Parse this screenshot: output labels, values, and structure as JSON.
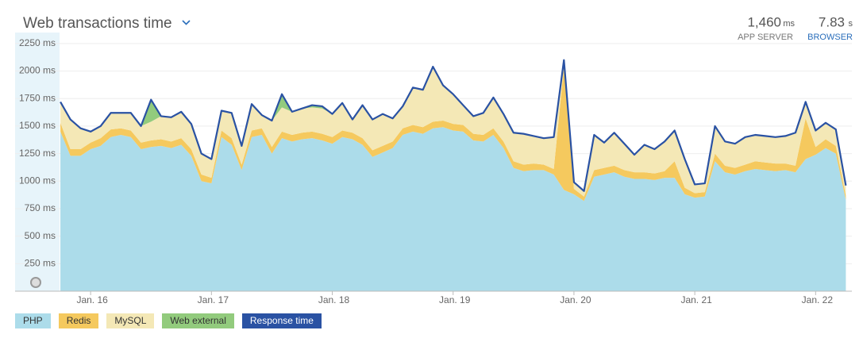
{
  "header": {
    "title": "Web transactions time",
    "stats": [
      {
        "value": "1,460",
        "unit": "ms",
        "label": "APP SERVER"
      },
      {
        "value": "7.83",
        "unit": "s",
        "label": "BROWSER"
      }
    ]
  },
  "chart_data": {
    "type": "area",
    "stacked": true,
    "grid": true,
    "x": [
      15.75,
      15.833,
      15.917,
      16,
      16.083,
      16.167,
      16.25,
      16.333,
      16.417,
      16.5,
      16.583,
      16.667,
      16.75,
      16.833,
      16.917,
      17,
      17.083,
      17.167,
      17.25,
      17.333,
      17.417,
      17.5,
      17.583,
      17.667,
      17.75,
      17.833,
      17.917,
      18,
      18.083,
      18.167,
      18.25,
      18.333,
      18.417,
      18.5,
      18.583,
      18.667,
      18.75,
      18.833,
      18.917,
      19,
      19.083,
      19.167,
      19.25,
      19.333,
      19.417,
      19.5,
      19.583,
      19.667,
      19.75,
      19.833,
      19.917,
      20,
      20.083,
      20.167,
      20.25,
      20.333,
      20.417,
      20.5,
      20.583,
      20.667,
      20.75,
      20.833,
      20.917,
      21,
      21.083,
      21.167,
      21.25,
      21.333,
      21.417,
      21.5,
      21.583,
      21.667,
      21.75,
      21.833,
      21.917,
      22,
      22.083,
      22.167,
      22.25
    ],
    "series": [
      {
        "name": "PHP",
        "color": "#acdcea",
        "values": [
          1450,
          1230,
          1230,
          1290,
          1320,
          1400,
          1420,
          1400,
          1290,
          1310,
          1320,
          1300,
          1330,
          1230,
          1000,
          980,
          1400,
          1330,
          1100,
          1400,
          1420,
          1250,
          1390,
          1360,
          1380,
          1390,
          1370,
          1340,
          1400,
          1380,
          1330,
          1220,
          1260,
          1300,
          1420,
          1450,
          1430,
          1480,
          1490,
          1460,
          1450,
          1370,
          1360,
          1420,
          1300,
          1120,
          1090,
          1100,
          1100,
          1060,
          920,
          880,
          820,
          1040,
          1060,
          1080,
          1040,
          1020,
          1020,
          1010,
          1030,
          1030,
          880,
          850,
          860,
          1180,
          1080,
          1060,
          1090,
          1110,
          1100,
          1090,
          1100,
          1080,
          1200,
          1240,
          1300,
          1250,
          830
        ]
      },
      {
        "name": "Redis",
        "color": "#f5c95e",
        "values": [
          80,
          60,
          60,
          60,
          70,
          70,
          60,
          60,
          60,
          60,
          60,
          60,
          60,
          60,
          60,
          50,
          60,
          60,
          50,
          60,
          60,
          60,
          60,
          60,
          60,
          60,
          60,
          60,
          60,
          60,
          60,
          60,
          60,
          60,
          60,
          60,
          60,
          60,
          60,
          60,
          60,
          60,
          60,
          60,
          60,
          60,
          60,
          60,
          50,
          50,
          1120,
          50,
          40,
          60,
          60,
          60,
          60,
          60,
          60,
          60,
          60,
          150,
          60,
          40,
          40,
          70,
          60,
          60,
          60,
          70,
          70,
          70,
          60,
          60,
          370,
          70,
          80,
          70,
          40
        ]
      },
      {
        "name": "MySQL",
        "color": "#f4e8b6",
        "values": [
          190,
          270,
          190,
          100,
          110,
          150,
          140,
          160,
          150,
          170,
          210,
          220,
          240,
          230,
          190,
          170,
          180,
          230,
          170,
          240,
          120,
          240,
          220,
          210,
          220,
          220,
          230,
          210,
          250,
          120,
          300,
          280,
          290,
          210,
          200,
          340,
          340,
          500,
          320,
          270,
          180,
          160,
          200,
          280,
          250,
          260,
          280,
          250,
          240,
          290,
          60,
          60,
          50,
          320,
          230,
          300,
          240,
          160,
          250,
          220,
          270,
          280,
          260,
          80,
          80,
          250,
          220,
          220,
          250,
          240,
          240,
          240,
          250,
          300,
          150,
          150,
          150,
          150,
          90
        ]
      },
      {
        "name": "Web external",
        "color": "#92cb7d",
        "values": [
          0,
          0,
          0,
          0,
          0,
          0,
          0,
          0,
          0,
          200,
          0,
          0,
          0,
          0,
          0,
          0,
          0,
          0,
          0,
          0,
          0,
          0,
          120,
          0,
          0,
          20,
          20,
          0,
          0,
          0,
          0,
          0,
          0,
          0,
          0,
          0,
          0,
          0,
          0,
          0,
          0,
          0,
          0,
          0,
          0,
          0,
          0,
          0,
          0,
          0,
          0,
          0,
          0,
          0,
          0,
          0,
          0,
          0,
          0,
          0,
          0,
          0,
          0,
          0,
          0,
          0,
          0,
          0,
          0,
          0,
          0,
          0,
          0,
          0,
          0,
          0,
          0,
          0,
          0
        ]
      },
      {
        "name": "Response time",
        "type": "line",
        "color": "#2a52a3",
        "values": [
          1720,
          1560,
          1480,
          1450,
          1500,
          1620,
          1620,
          1620,
          1500,
          1740,
          1590,
          1580,
          1630,
          1520,
          1250,
          1200,
          1640,
          1620,
          1320,
          1700,
          1600,
          1550,
          1790,
          1630,
          1660,
          1690,
          1680,
          1610,
          1710,
          1560,
          1690,
          1560,
          1610,
          1570,
          1680,
          1850,
          1830,
          2040,
          1870,
          1790,
          1690,
          1590,
          1620,
          1760,
          1610,
          1440,
          1430,
          1410,
          1390,
          1400,
          2100,
          990,
          910,
          1420,
          1350,
          1440,
          1340,
          1240,
          1330,
          1290,
          1360,
          1460,
          1200,
          970,
          980,
          1500,
          1360,
          1340,
          1400,
          1420,
          1410,
          1400,
          1410,
          1440,
          1720,
          1460,
          1530,
          1470,
          960
        ]
      }
    ],
    "xlim": [
      15.375,
      22.3
    ],
    "xticks": [
      {
        "value": 16,
        "label": "Jan. 16"
      },
      {
        "value": 17,
        "label": "Jan. 17"
      },
      {
        "value": 18,
        "label": "Jan. 18"
      },
      {
        "value": 19,
        "label": "Jan. 19"
      },
      {
        "value": 20,
        "label": "Jan. 20"
      },
      {
        "value": 21,
        "label": "Jan. 21"
      },
      {
        "value": 22,
        "label": "Jan. 22"
      }
    ],
    "ylim": [
      0,
      2350
    ],
    "yticks": [
      {
        "value": 250,
        "label": "250 ms"
      },
      {
        "value": 500,
        "label": "500 ms"
      },
      {
        "value": 750,
        "label": "750 ms"
      },
      {
        "value": 1000,
        "label": "1000 ms"
      },
      {
        "value": 1250,
        "label": "1250 ms"
      },
      {
        "value": 1500,
        "label": "1500 ms"
      },
      {
        "value": 1750,
        "label": "1750 ms"
      },
      {
        "value": 2000,
        "label": "2000 ms"
      },
      {
        "value": 2250,
        "label": "2250 ms"
      }
    ]
  }
}
